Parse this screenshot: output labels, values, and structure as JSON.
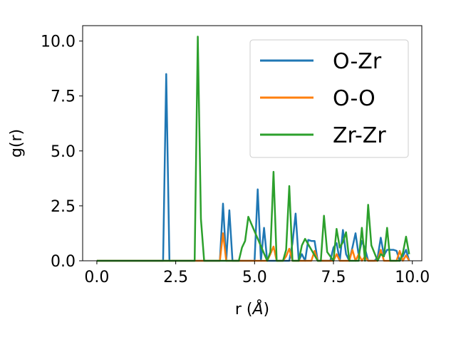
{
  "chart_data": {
    "type": "line",
    "title": "",
    "xlabel_prefix": "r (",
    "xlabel_symbol": "Å",
    "xlabel_suffix": ")",
    "ylabel": "g(r)",
    "xlim": [
      -0.45,
      10.3
    ],
    "ylim": [
      0,
      10.7
    ],
    "xticks": [
      0.0,
      2.5,
      5.0,
      7.5,
      10.0
    ],
    "yticks": [
      0.0,
      2.5,
      5.0,
      7.5,
      10.0
    ],
    "xtick_labels": [
      "0.0",
      "2.5",
      "5.0",
      "7.5",
      "10.0"
    ],
    "ytick_labels": [
      "0.0",
      "2.5",
      "5.0",
      "7.5",
      "10.0"
    ],
    "grid": false,
    "legend_position": "top-right",
    "series": [
      {
        "name": "O-Zr",
        "color": "#1f77b4",
        "x": [
          0,
          2.1,
          2.2,
          2.3,
          3.4,
          3.9,
          4.0,
          4.1,
          4.2,
          4.3,
          4.4,
          4.9,
          5.0,
          5.1,
          5.2,
          5.3,
          5.4,
          5.5,
          5.9,
          6.0,
          6.1,
          6.2,
          6.3,
          6.4,
          6.5,
          6.6,
          6.7,
          6.8,
          6.9,
          7.0,
          7.4,
          7.5,
          7.6,
          7.7,
          7.8,
          7.9,
          8.0,
          8.1,
          8.2,
          8.3,
          8.4,
          8.5,
          8.6,
          8.7,
          8.8,
          8.9,
          9.0,
          9.1,
          9.2,
          9.3,
          9.4,
          9.5,
          9.6,
          9.7,
          9.8,
          9.9
        ],
        "y": [
          0,
          0,
          8.5,
          0,
          0,
          0,
          2.6,
          0,
          2.3,
          0,
          0,
          0,
          0,
          3.25,
          0,
          1.5,
          0,
          0,
          0,
          0,
          0,
          0.8,
          2.15,
          0,
          0.3,
          0,
          0.95,
          0.9,
          0.9,
          0,
          0,
          0.6,
          0.8,
          0,
          1.4,
          0.3,
          0,
          0.6,
          1.25,
          0.25,
          0.9,
          0.55,
          0,
          0,
          0,
          0.15,
          1.05,
          0.25,
          0.5,
          0.5,
          0.5,
          0.45,
          0,
          0.2,
          0.5,
          0
        ]
      },
      {
        "name": "O-O",
        "color": "#ff7f0e",
        "x": [
          0,
          3.9,
          4.0,
          4.1,
          4.2,
          5.4,
          5.5,
          5.6,
          5.7,
          5.9,
          6.0,
          6.1,
          6.2,
          6.8,
          6.9,
          7.0,
          7.5,
          7.6,
          7.7,
          8.0,
          8.1,
          8.2,
          8.3,
          8.4,
          8.5,
          8.6,
          8.7,
          8.9,
          9.0,
          9.1,
          9.5,
          9.6,
          9.7,
          9.8,
          9.9
        ],
        "y": [
          0,
          0,
          1.25,
          0,
          0,
          0,
          0.3,
          0.65,
          0,
          0,
          0.2,
          0.55,
          0,
          0,
          0.45,
          0,
          0,
          0.3,
          0,
          0,
          0.5,
          0,
          0.3,
          0,
          0.2,
          0,
          0,
          0,
          0.5,
          0,
          0,
          0.45,
          0,
          0.25,
          0
        ]
      },
      {
        "name": "Zr-Zr",
        "color": "#2ca02c",
        "x": [
          0,
          3.1,
          3.2,
          3.3,
          3.4,
          4.5,
          4.6,
          4.7,
          4.8,
          5.4,
          5.5,
          5.6,
          5.7,
          5.9,
          6.0,
          6.1,
          6.2,
          6.4,
          6.5,
          6.6,
          7.0,
          7.1,
          7.2,
          7.3,
          7.5,
          7.6,
          7.7,
          7.8,
          7.9,
          8.0,
          8.1,
          8.3,
          8.4,
          8.5,
          8.6,
          8.7,
          8.9,
          9.0,
          9.1,
          9.2,
          9.3,
          9.5,
          9.6,
          9.7,
          9.8,
          9.9
        ],
        "y": [
          0,
          0,
          10.2,
          1.9,
          0,
          0,
          0.6,
          0.9,
          2.0,
          0,
          0.4,
          4.05,
          0,
          0,
          0.5,
          3.4,
          0,
          0,
          0.7,
          1.0,
          0,
          0,
          2.05,
          0.4,
          0,
          1.45,
          0.6,
          0.85,
          1.3,
          0,
          0,
          0,
          1.5,
          0,
          2.55,
          0.7,
          0,
          0.3,
          0.2,
          1.5,
          0,
          0,
          0,
          0.35,
          1.1,
          0.3
        ]
      }
    ]
  }
}
